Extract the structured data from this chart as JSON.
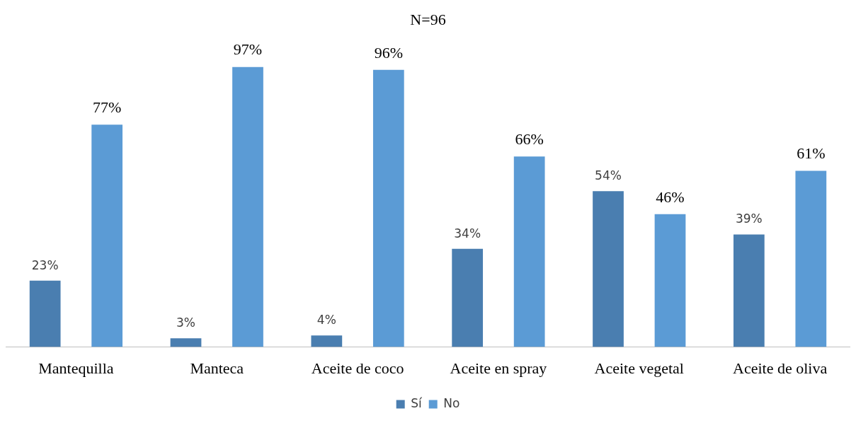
{
  "chart_data": {
    "type": "bar",
    "title": "N=96",
    "categories": [
      "Mantequilla",
      "Manteca",
      "Aceite de coco",
      "Aceite en spray",
      "Aceite vegetal",
      "Aceite de oliva"
    ],
    "series": [
      {
        "name": "Sí",
        "color": "#4a7eb0",
        "values": [
          23,
          3,
          4,
          34,
          54,
          39
        ],
        "value_labels": [
          "23%",
          "3%",
          "4%",
          "34%",
          "54%",
          "39%"
        ]
      },
      {
        "name": "No",
        "color": "#5b9bd5",
        "values": [
          77,
          97,
          96,
          66,
          46,
          61
        ],
        "value_labels": [
          "77%",
          "97%",
          "96%",
          "66%",
          "46%",
          "61%"
        ]
      }
    ],
    "legend": "bottom",
    "grid": false
  }
}
